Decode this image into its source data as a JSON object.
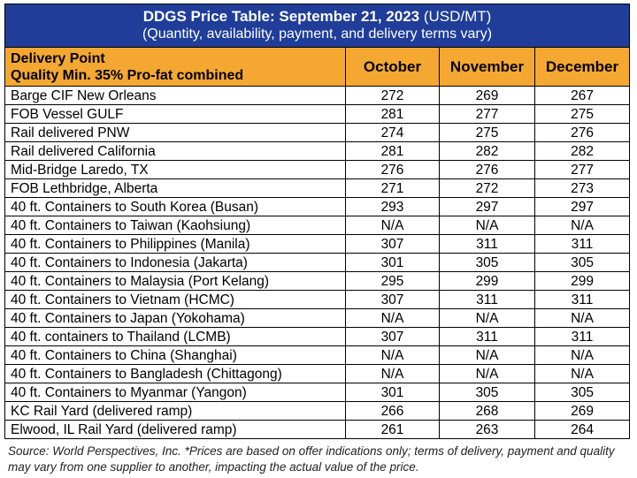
{
  "title": {
    "main": "DDGS Price Table: September 21, 2023",
    "unit": " (USD/MT)",
    "subtitle": "(Quantity, availability, payment, and delivery terms vary)"
  },
  "header": {
    "col1_line1": "Delivery Point",
    "col1_line2": "Quality Min. 35% Pro-fat combined",
    "months": [
      "October",
      "November",
      "December"
    ]
  },
  "rows": [
    {
      "name": "Barge CIF New Orleans",
      "oct": "272",
      "nov": "269",
      "dec": "267"
    },
    {
      "name": "FOB Vessel GULF",
      "oct": "281",
      "nov": "277",
      "dec": "275"
    },
    {
      "name": "Rail delivered PNW",
      "oct": "274",
      "nov": "275",
      "dec": "276"
    },
    {
      "name": "Rail delivered California",
      "oct": "281",
      "nov": "282",
      "dec": "282"
    },
    {
      "name": "Mid-Bridge Laredo, TX",
      "oct": "276",
      "nov": "276",
      "dec": "277"
    },
    {
      "name": "FOB Lethbridge, Alberta",
      "oct": "271",
      "nov": "272",
      "dec": "273"
    },
    {
      "name": "40 ft. Containers to South Korea (Busan)",
      "oct": "293",
      "nov": "297",
      "dec": "297"
    },
    {
      "name": "40 ft. Containers to Taiwan (Kaohsiung)",
      "oct": "N/A",
      "nov": "N/A",
      "dec": "N/A"
    },
    {
      "name": "40 ft. Containers to Philippines (Manila)",
      "oct": "307",
      "nov": "311",
      "dec": "311"
    },
    {
      "name": "40 ft. Containers to Indonesia (Jakarta)",
      "oct": "301",
      "nov": "305",
      "dec": "305"
    },
    {
      "name": "40 ft. Containers to Malaysia (Port Kelang)",
      "oct": "295",
      "nov": "299",
      "dec": "299"
    },
    {
      "name": "40 ft. Containers to Vietnam (HCMC)",
      "oct": "307",
      "nov": "311",
      "dec": "311"
    },
    {
      "name": "40 ft. Containers to Japan (Yokohama)",
      "oct": "N/A",
      "nov": "N/A",
      "dec": "N/A"
    },
    {
      "name": "40 ft. containers to Thailand (LCMB)",
      "oct": "307",
      "nov": "311",
      "dec": "311"
    },
    {
      "name": "40 ft. Containers to China (Shanghai)",
      "oct": "N/A",
      "nov": "N/A",
      "dec": "N/A"
    },
    {
      "name": "40 ft. Containers to Bangladesh (Chittagong)",
      "oct": "N/A",
      "nov": "N/A",
      "dec": "N/A"
    },
    {
      "name": "40 ft. Containers to Myanmar (Yangon)",
      "oct": "301",
      "nov": "305",
      "dec": "305"
    },
    {
      "name": "KC Rail Yard (delivered ramp)",
      "oct": "266",
      "nov": "268",
      "dec": "269"
    },
    {
      "name": "Elwood, IL Rail Yard (delivered ramp)",
      "oct": "261",
      "nov": "263",
      "dec": "264"
    }
  ],
  "footnote": "Source: World Perspectives, Inc. *Prices are based on offer indications only; terms of delivery, payment and quality may vary from one supplier to another, impacting the actual value of the price.",
  "colors": {
    "title_bg": "#1f3d99",
    "header_bg": "#f4a832"
  }
}
